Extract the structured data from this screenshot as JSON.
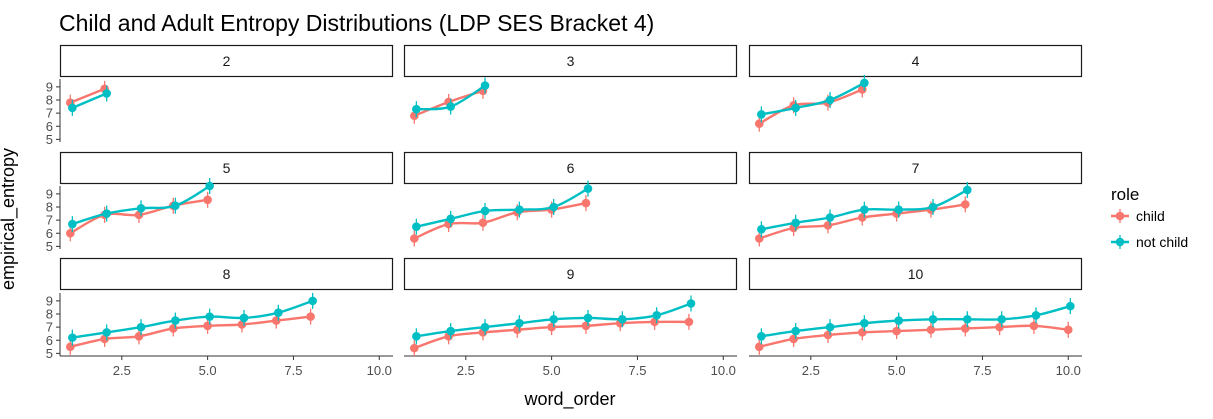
{
  "chart_data": {
    "type": "line",
    "title": "Child and Adult Entropy Distributions (LDP SES Bracket 4)",
    "xlabel": "word_order",
    "ylabel": "empirical_entropy",
    "xlim": [
      0.7,
      10.4
    ],
    "ylim": [
      4.8,
      9.6
    ],
    "xticks": [
      2.5,
      5.0,
      7.5,
      10.0
    ],
    "xtick_labels": [
      "2.5",
      "5.0",
      "7.5",
      "10.0"
    ],
    "yticks": [
      5,
      6,
      7,
      8,
      9
    ],
    "ytick_labels": [
      "5",
      "6",
      "7",
      "8",
      "9"
    ],
    "grid": false,
    "legend": {
      "title": "role",
      "placement": "right",
      "entries": [
        {
          "name": "child",
          "color": "#F8766D"
        },
        {
          "name": "not child",
          "color": "#00BFC4"
        }
      ]
    },
    "facets": [
      {
        "label": "2",
        "child": [
          7.8,
          8.85
        ],
        "not_child": [
          7.4,
          8.5
        ]
      },
      {
        "label": "3",
        "child": [
          6.8,
          7.85,
          8.7
        ],
        "not_child": [
          7.3,
          7.5,
          9.1
        ]
      },
      {
        "label": "4",
        "child": [
          6.2,
          7.6,
          7.8,
          8.8
        ],
        "not_child": [
          6.9,
          7.4,
          8.0,
          9.3
        ]
      },
      {
        "label": "5",
        "child": [
          6.0,
          7.4,
          7.4,
          8.1,
          8.55
        ],
        "not_child": [
          6.7,
          7.5,
          7.9,
          8.1,
          9.6
        ]
      },
      {
        "label": "6",
        "child": [
          5.6,
          6.7,
          6.8,
          7.6,
          7.8,
          8.3
        ],
        "not_child": [
          6.5,
          7.1,
          7.7,
          7.8,
          8.0,
          9.4
        ]
      },
      {
        "label": "7",
        "child": [
          5.6,
          6.4,
          6.6,
          7.2,
          7.5,
          7.8,
          8.2
        ],
        "not_child": [
          6.3,
          6.8,
          7.2,
          7.8,
          7.8,
          8.0,
          9.3
        ]
      },
      {
        "label": "8",
        "child": [
          5.5,
          6.1,
          6.3,
          6.9,
          7.1,
          7.2,
          7.5,
          7.8
        ],
        "not_child": [
          6.2,
          6.6,
          7.0,
          7.5,
          7.8,
          7.7,
          8.1,
          9.0
        ]
      },
      {
        "label": "9",
        "child": [
          5.4,
          6.3,
          6.6,
          6.8,
          7.0,
          7.1,
          7.3,
          7.4,
          7.4
        ],
        "not_child": [
          6.3,
          6.7,
          7.0,
          7.3,
          7.6,
          7.7,
          7.6,
          7.9,
          8.8
        ]
      },
      {
        "label": "10",
        "child": [
          5.5,
          6.1,
          6.4,
          6.6,
          6.7,
          6.8,
          6.9,
          7.0,
          7.1,
          6.8
        ],
        "not_child": [
          6.3,
          6.7,
          7.0,
          7.3,
          7.5,
          7.6,
          7.6,
          7.6,
          7.9,
          8.6
        ]
      }
    ]
  }
}
